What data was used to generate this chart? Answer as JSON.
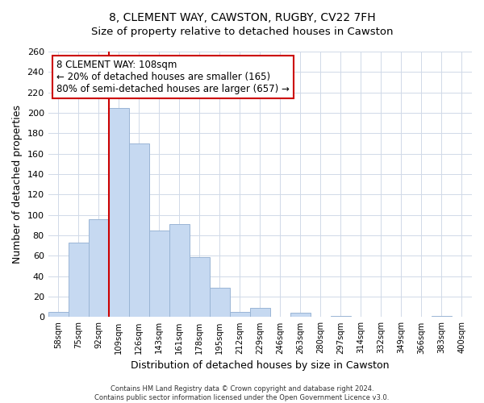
{
  "title1": "8, CLEMENT WAY, CAWSTON, RUGBY, CV22 7FH",
  "title2": "Size of property relative to detached houses in Cawston",
  "xlabel": "Distribution of detached houses by size in Cawston",
  "ylabel": "Number of detached properties",
  "bar_labels": [
    "58sqm",
    "75sqm",
    "92sqm",
    "109sqm",
    "126sqm",
    "143sqm",
    "161sqm",
    "178sqm",
    "195sqm",
    "212sqm",
    "229sqm",
    "246sqm",
    "263sqm",
    "280sqm",
    "297sqm",
    "314sqm",
    "332sqm",
    "349sqm",
    "366sqm",
    "383sqm",
    "400sqm"
  ],
  "bar_values": [
    5,
    73,
    96,
    205,
    170,
    85,
    91,
    59,
    29,
    5,
    9,
    0,
    4,
    0,
    1,
    0,
    0,
    0,
    0,
    1,
    0
  ],
  "bar_color": "#c6d9f1",
  "bar_edge_color": "#9ab5d5",
  "vline_color": "#cc0000",
  "vline_index": 3,
  "ylim": [
    0,
    260
  ],
  "yticks": [
    0,
    20,
    40,
    60,
    80,
    100,
    120,
    140,
    160,
    180,
    200,
    220,
    240,
    260
  ],
  "annotation_title": "8 CLEMENT WAY: 108sqm",
  "annotation_line1": "← 20% of detached houses are smaller (165)",
  "annotation_line2": "80% of semi-detached houses are larger (657) →",
  "footer1": "Contains HM Land Registry data © Crown copyright and database right 2024.",
  "footer2": "Contains public sector information licensed under the Open Government Licence v3.0.",
  "grid_color": "#d0d9e8",
  "title1_fontsize": 10,
  "title2_fontsize": 9.5
}
